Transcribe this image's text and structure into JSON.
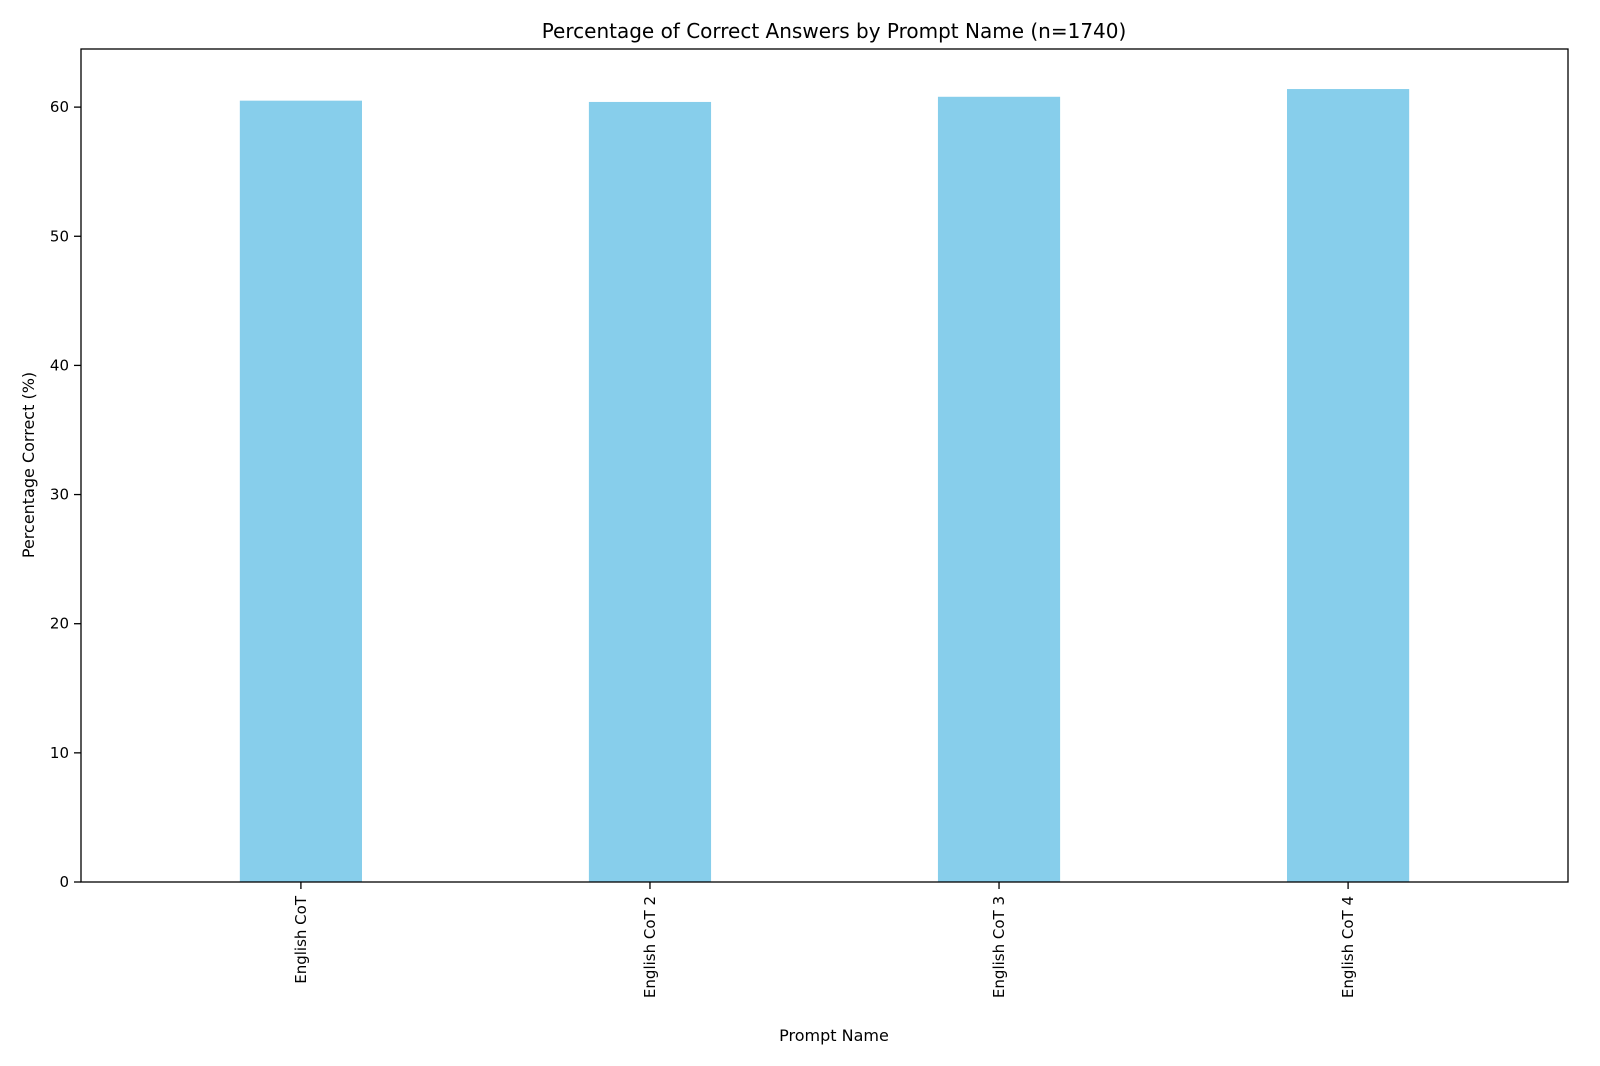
{
  "chart_data": {
    "type": "bar",
    "title": "Percentage of Correct Answers by Prompt Name (n=1740)",
    "xlabel": "Prompt Name",
    "ylabel": "Percentage Correct (%)",
    "categories": [
      "English CoT",
      "English CoT 2",
      "English CoT 3",
      "English CoT 4"
    ],
    "values": [
      60.5,
      60.4,
      60.8,
      61.4
    ],
    "ylim": [
      0,
      64.5
    ],
    "yticks": [
      0,
      10,
      20,
      30,
      40,
      50,
      60
    ],
    "bar_color": "#87CEEB",
    "grid": false,
    "legend": "none"
  }
}
